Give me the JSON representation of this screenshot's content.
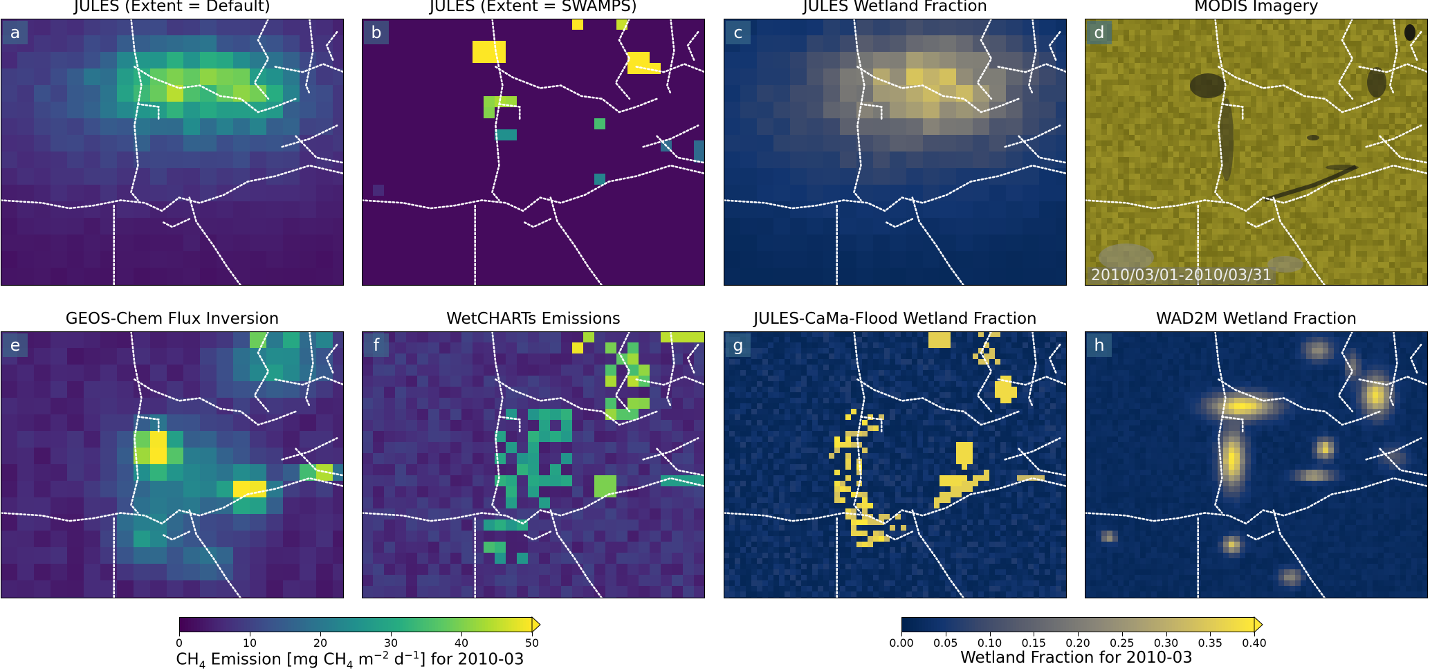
{
  "figure": {
    "panels": [
      {
        "id": "a",
        "label": "a",
        "title": "JULES (Extent = Default)",
        "kind": "emis_default"
      },
      {
        "id": "b",
        "label": "b",
        "title": "JULES (Extent = SWAMPS)",
        "kind": "emis_swamps"
      },
      {
        "id": "c",
        "label": "c",
        "title": "JULES Wetland Fraction",
        "kind": "frac_jules"
      },
      {
        "id": "d",
        "label": "d",
        "title": "MODIS Imagery",
        "kind": "modis",
        "date_text": "2010/03/01-2010/03/31"
      },
      {
        "id": "e",
        "label": "e",
        "title": "GEOS-Chem Flux Inversion",
        "kind": "emis_geos"
      },
      {
        "id": "f",
        "label": "f",
        "title": "WetCHARTs Emissions",
        "kind": "emis_wetcharts"
      },
      {
        "id": "g",
        "label": "g",
        "title": "JULES-CaMa-Flood Wetland Fraction",
        "kind": "frac_cama"
      },
      {
        "id": "h",
        "label": "h",
        "title": "WAD2M Wetland Fraction",
        "kind": "frac_wad2m"
      }
    ]
  },
  "chart_data": [
    {
      "type": "heatmap",
      "role": "colorbar",
      "colormap": "viridis",
      "range": [
        0,
        50
      ],
      "ticks": [
        0,
        10,
        20,
        30,
        40,
        50
      ],
      "extend": "max",
      "label_main": "CH",
      "label_sub": "4",
      "label_mid": " Emission [mg CH",
      "label_sub2": "4",
      "label_mid2": " m",
      "label_sup": "−2",
      "label_mid3": " d",
      "label_sup2": "−1",
      "label_end": "] for 2010-03",
      "panels": [
        "a",
        "b",
        "e",
        "f"
      ]
    },
    {
      "type": "heatmap",
      "role": "colorbar",
      "colormap": "cividis",
      "range": [
        0,
        0.4
      ],
      "ticks": [
        "0.00",
        "0.05",
        "0.10",
        "0.15",
        "0.20",
        "0.25",
        "0.30",
        "0.35",
        "0.40"
      ],
      "extend": "max",
      "label": "Wetland Fraction for 2010-03",
      "panels": [
        "c",
        "g",
        "h"
      ]
    }
  ]
}
